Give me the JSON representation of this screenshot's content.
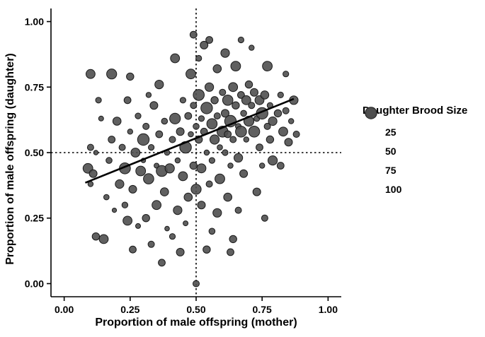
{
  "figure": {
    "xlabel": "Proportion of male offspring (mother)",
    "ylabel": "Proportion of male offspring (daughter)",
    "legend": {
      "title": "Daughter Brood Size",
      "entries": [
        {
          "label": "25",
          "value": 25
        },
        {
          "label": "50",
          "value": 50
        },
        {
          "label": "75",
          "value": 75
        },
        {
          "label": "100",
          "value": 100
        }
      ]
    }
  },
  "colors": {
    "point_fill": "#4f4f4f",
    "point_stroke": "#1a1a1a",
    "line": "#000000",
    "axis": "#000000"
  },
  "chart_data": {
    "type": "scatter",
    "title": "",
    "xlabel": "Proportion of male offspring (mother)",
    "ylabel": "Proportion of male offspring (daughter)",
    "xlim": [
      0,
      1
    ],
    "ylim": [
      0,
      1
    ],
    "xticks": [
      "0.00",
      "0.25",
      "0.50",
      "0.75",
      "1.00"
    ],
    "yticks": [
      "0.00",
      "0.25",
      "0.50",
      "0.75",
      "1.00"
    ],
    "grid": false,
    "legend_position": "right",
    "size_legend": {
      "title": "Daughter Brood Size",
      "values": [
        25,
        50,
        75,
        100
      ]
    },
    "reference_lines": {
      "vertical_dotted_x": 0.5,
      "horizontal_dotted_y": 0.5
    },
    "trend_line": {
      "x1": 0.08,
      "y1": 0.385,
      "x2": 0.87,
      "y2": 0.705
    },
    "points": [
      [
        0.1,
        0.8,
        60
      ],
      [
        0.13,
        0.7,
        25
      ],
      [
        0.1,
        0.52,
        30
      ],
      [
        0.12,
        0.5,
        15
      ],
      [
        0.09,
        0.44,
        70
      ],
      [
        0.11,
        0.42,
        45
      ],
      [
        0.1,
        0.38,
        20
      ],
      [
        0.14,
        0.63,
        18
      ],
      [
        0.12,
        0.18,
        40
      ],
      [
        0.15,
        0.17,
        60
      ],
      [
        0.16,
        0.33,
        22
      ],
      [
        0.18,
        0.55,
        35
      ],
      [
        0.17,
        0.47,
        28
      ],
      [
        0.19,
        0.28,
        14
      ],
      [
        0.2,
        0.62,
        50
      ],
      [
        0.18,
        0.8,
        75
      ],
      [
        0.22,
        0.52,
        30
      ],
      [
        0.23,
        0.44,
        90
      ],
      [
        0.24,
        0.7,
        35
      ],
      [
        0.25,
        0.58,
        20
      ],
      [
        0.26,
        0.36,
        45
      ],
      [
        0.27,
        0.5,
        60
      ],
      [
        0.28,
        0.64,
        25
      ],
      [
        0.28,
        0.22,
        18
      ],
      [
        0.29,
        0.43,
        70
      ],
      [
        0.25,
        0.79,
        40
      ],
      [
        0.23,
        0.3,
        26
      ],
      [
        0.21,
        0.38,
        55
      ],
      [
        0.26,
        0.13,
        35
      ],
      [
        0.3,
        0.55,
        100
      ],
      [
        0.3,
        0.47,
        15
      ],
      [
        0.24,
        0.24,
        60
      ],
      [
        0.31,
        0.6,
        30
      ],
      [
        0.32,
        0.4,
        80
      ],
      [
        0.33,
        0.52,
        25
      ],
      [
        0.34,
        0.68,
        45
      ],
      [
        0.35,
        0.45,
        18
      ],
      [
        0.35,
        0.3,
        60
      ],
      [
        0.36,
        0.57,
        35
      ],
      [
        0.37,
        0.43,
        90
      ],
      [
        0.38,
        0.62,
        28
      ],
      [
        0.38,
        0.35,
        50
      ],
      [
        0.39,
        0.5,
        22
      ],
      [
        0.31,
        0.25,
        40
      ],
      [
        0.33,
        0.15,
        30
      ],
      [
        0.36,
        0.76,
        55
      ],
      [
        0.39,
        0.21,
        16
      ],
      [
        0.32,
        0.72,
        20
      ],
      [
        0.37,
        0.08,
        35
      ],
      [
        0.4,
        0.44,
        65
      ],
      [
        0.41,
        0.55,
        30
      ],
      [
        0.42,
        0.63,
        85
      ],
      [
        0.43,
        0.47,
        20
      ],
      [
        0.44,
        0.58,
        45
      ],
      [
        0.45,
        0.41,
        60
      ],
      [
        0.45,
        0.7,
        25
      ],
      [
        0.46,
        0.52,
        100
      ],
      [
        0.47,
        0.64,
        35
      ],
      [
        0.47,
        0.33,
        50
      ],
      [
        0.48,
        0.57,
        22
      ],
      [
        0.48,
        0.8,
        70
      ],
      [
        0.49,
        0.45,
        40
      ],
      [
        0.49,
        0.68,
        30
      ],
      [
        0.43,
        0.28,
        55
      ],
      [
        0.41,
        0.18,
        25
      ],
      [
        0.44,
        0.12,
        45
      ],
      [
        0.46,
        0.23,
        18
      ],
      [
        0.42,
        0.86,
        60
      ],
      [
        0.49,
        0.95,
        35
      ],
      [
        0.5,
        0.0,
        30
      ],
      [
        0.5,
        0.36,
        75
      ],
      [
        0.5,
        0.6,
        28
      ],
      [
        0.51,
        0.55,
        40
      ],
      [
        0.51,
        0.72,
        90
      ],
      [
        0.52,
        0.63,
        25
      ],
      [
        0.52,
        0.44,
        60
      ],
      [
        0.53,
        0.58,
        35
      ],
      [
        0.53,
        0.91,
        45
      ],
      [
        0.54,
        0.67,
        100
      ],
      [
        0.54,
        0.5,
        20
      ],
      [
        0.55,
        0.75,
        55
      ],
      [
        0.55,
        0.38,
        30
      ],
      [
        0.56,
        0.61,
        80
      ],
      [
        0.56,
        0.47,
        25
      ],
      [
        0.57,
        0.7,
        40
      ],
      [
        0.57,
        0.55,
        65
      ],
      [
        0.58,
        0.64,
        30
      ],
      [
        0.58,
        0.82,
        50
      ],
      [
        0.59,
        0.52,
        22
      ],
      [
        0.59,
        0.4,
        70
      ],
      [
        0.55,
        0.93,
        35
      ],
      [
        0.52,
        0.3,
        45
      ],
      [
        0.56,
        0.2,
        28
      ],
      [
        0.58,
        0.27,
        55
      ],
      [
        0.51,
        0.86,
        25
      ],
      [
        0.54,
        0.13,
        40
      ],
      [
        0.6,
        0.58,
        90
      ],
      [
        0.6,
        0.73,
        30
      ],
      [
        0.61,
        0.65,
        45
      ],
      [
        0.61,
        0.5,
        25
      ],
      [
        0.62,
        0.7,
        80
      ],
      [
        0.62,
        0.57,
        35
      ],
      [
        0.63,
        0.62,
        100
      ],
      [
        0.63,
        0.45,
        20
      ],
      [
        0.64,
        0.75,
        60
      ],
      [
        0.64,
        0.55,
        30
      ],
      [
        0.65,
        0.68,
        40
      ],
      [
        0.65,
        0.83,
        70
      ],
      [
        0.66,
        0.6,
        25
      ],
      [
        0.66,
        0.48,
        55
      ],
      [
        0.67,
        0.72,
        35
      ],
      [
        0.67,
        0.58,
        90
      ],
      [
        0.68,
        0.65,
        28
      ],
      [
        0.68,
        0.42,
        45
      ],
      [
        0.69,
        0.7,
        60
      ],
      [
        0.69,
        0.55,
        20
      ],
      [
        0.62,
        0.33,
        50
      ],
      [
        0.66,
        0.28,
        30
      ],
      [
        0.64,
        0.17,
        40
      ],
      [
        0.61,
        0.88,
        55
      ],
      [
        0.67,
        0.93,
        25
      ],
      [
        0.63,
        0.12,
        35
      ],
      [
        0.7,
        0.62,
        75
      ],
      [
        0.7,
        0.76,
        40
      ],
      [
        0.71,
        0.68,
        30
      ],
      [
        0.72,
        0.58,
        90
      ],
      [
        0.72,
        0.73,
        45
      ],
      [
        0.73,
        0.63,
        25
      ],
      [
        0.74,
        0.7,
        60
      ],
      [
        0.74,
        0.52,
        35
      ],
      [
        0.75,
        0.65,
        100
      ],
      [
        0.75,
        0.45,
        20
      ],
      [
        0.76,
        0.72,
        50
      ],
      [
        0.77,
        0.6,
        30
      ],
      [
        0.77,
        0.83,
        70
      ],
      [
        0.78,
        0.55,
        40
      ],
      [
        0.78,
        0.68,
        25
      ],
      [
        0.79,
        0.62,
        55
      ],
      [
        0.73,
        0.35,
        45
      ],
      [
        0.76,
        0.25,
        30
      ],
      [
        0.71,
        0.9,
        20
      ],
      [
        0.79,
        0.47,
        65
      ],
      [
        0.81,
        0.65,
        40
      ],
      [
        0.82,
        0.72,
        25
      ],
      [
        0.83,
        0.58,
        60
      ],
      [
        0.84,
        0.66,
        30
      ],
      [
        0.85,
        0.54,
        45
      ],
      [
        0.86,
        0.62,
        20
      ],
      [
        0.87,
        0.7,
        55
      ],
      [
        0.82,
        0.45,
        35
      ],
      [
        0.84,
        0.8,
        25
      ],
      [
        0.88,
        0.57,
        30
      ]
    ]
  }
}
